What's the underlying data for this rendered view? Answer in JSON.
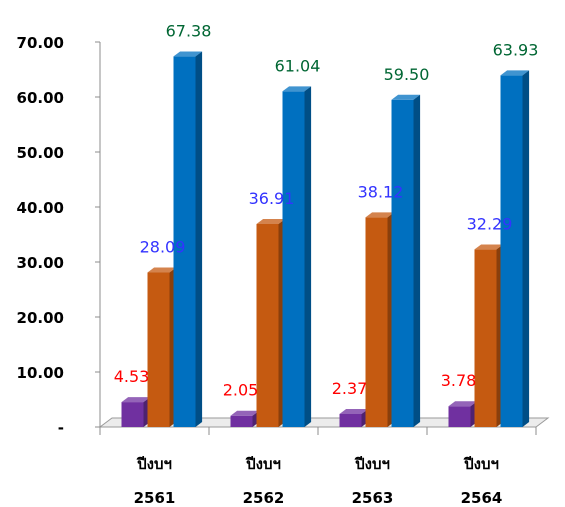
{
  "chart_data": {
    "type": "bar",
    "categories": [
      [
        "ปีงบฯ",
        "2561"
      ],
      [
        "ปีงบฯ",
        "2562"
      ],
      [
        "ปีงบฯ",
        "2563"
      ],
      [
        "ปีงบฯ",
        "2564"
      ]
    ],
    "y_ticks": [
      "-",
      "10.00",
      "20.00",
      "30.00",
      "40.00",
      "50.00",
      "60.00",
      "70.00"
    ],
    "ylim": [
      0,
      70
    ],
    "grid": false,
    "legend": "none",
    "series": [
      {
        "values": [
          4.53,
          2.05,
          2.37,
          3.78
        ],
        "labels": [
          "4.53",
          "2.05",
          "2.37",
          "3.78"
        ],
        "color": "#7030a0",
        "label_color": "#ff0000"
      },
      {
        "values": [
          28.09,
          36.91,
          38.12,
          32.29
        ],
        "labels": [
          "28.09",
          "36.91",
          "38.12",
          "32.29"
        ],
        "color": "#c55a11",
        "label_color": "#3333ff"
      },
      {
        "values": [
          67.38,
          61.04,
          59.5,
          63.93
        ],
        "labels": [
          "67.38",
          "61.04",
          "59.50",
          "63.93"
        ],
        "color": "#0070c0",
        "label_color": "#006633"
      }
    ]
  }
}
